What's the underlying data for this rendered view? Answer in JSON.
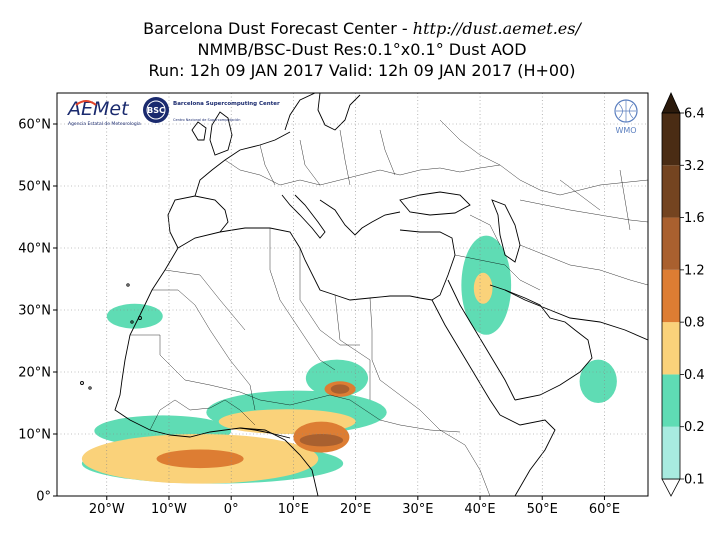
{
  "title": {
    "line1_prefix": "Barcelona Dust Forecast Center - ",
    "line1_url": "http://dust.aemet.es/",
    "line2": "NMMB/BSC-Dust   Res:0.1°x0.1°   Dust AOD",
    "line3": "Run: 12h 09 JAN 2017   Valid: 12h 09 JAN 2017 (H+00)"
  },
  "map": {
    "lon_range": [
      -28,
      67
    ],
    "lat_range": [
      0,
      65
    ],
    "lon_ticks": [
      -20,
      -10,
      0,
      10,
      20,
      30,
      40,
      50,
      60
    ],
    "lon_tick_labels": [
      "20°W",
      "10°W",
      "0°",
      "10°E",
      "20°E",
      "30°E",
      "40°E",
      "50°E",
      "60°E"
    ],
    "lat_ticks": [
      0,
      10,
      20,
      30,
      40,
      50,
      60
    ],
    "lat_tick_labels": [
      "0°",
      "10°N",
      "20°N",
      "30°N",
      "40°N",
      "50°N",
      "60°N"
    ],
    "grid": true,
    "grid_style": "dotted"
  },
  "colorbar": {
    "levels": [
      "0.1",
      "0.2",
      "0.4",
      "0.8",
      "1.2",
      "1.6",
      "3.2",
      "6.4"
    ],
    "colors": [
      "#a8ebe0",
      "#5fdcb4",
      "#fad27a",
      "#dd7d33",
      "#a9602f",
      "#744420",
      "#4a2c14"
    ],
    "extend": "both",
    "under_color": "#ffffff",
    "over_color": "#2b1a0c"
  },
  "logos": {
    "aemet_text": "AEMet",
    "aemet_sub": "Agencia Estatal de Meteorología",
    "bsc_mark": "BSC",
    "bsc_name": "Barcelona Supercomputing Center",
    "bsc_sub": "Centro Nacional de Supercomputación",
    "wmo_text": "WMO"
  },
  "dust_blobs": [
    {
      "level": 1,
      "lon": [
        -24,
        18
      ],
      "lat": [
        2,
        8.5
      ]
    },
    {
      "level": 1,
      "lon": [
        -22,
        0
      ],
      "lat": [
        8,
        13
      ]
    },
    {
      "level": 1,
      "lon": [
        -4,
        25
      ],
      "lat": [
        10,
        17
      ]
    },
    {
      "level": 1,
      "lon": [
        12,
        22
      ],
      "lat": [
        16,
        22
      ]
    },
    {
      "level": 1,
      "lon": [
        -20,
        -11
      ],
      "lat": [
        27,
        31
      ]
    },
    {
      "level": 1,
      "lon": [
        37,
        45
      ],
      "lat": [
        26,
        42
      ]
    },
    {
      "level": 1,
      "lon": [
        56,
        62
      ],
      "lat": [
        15,
        22
      ]
    },
    {
      "level": 2,
      "lon": [
        -24,
        14
      ],
      "lat": [
        2,
        10
      ]
    },
    {
      "level": 2,
      "lon": [
        -2,
        20
      ],
      "lat": [
        10,
        14
      ]
    },
    {
      "level": 2,
      "lon": [
        39,
        42
      ],
      "lat": [
        31,
        36
      ]
    },
    {
      "level": 3,
      "lon": [
        -12,
        2
      ],
      "lat": [
        4.5,
        7.5
      ]
    },
    {
      "level": 3,
      "lon": [
        10,
        19
      ],
      "lat": [
        7,
        12
      ]
    },
    {
      "level": 3,
      "lon": [
        15,
        20
      ],
      "lat": [
        16,
        18.5
      ]
    },
    {
      "level": 4,
      "lon": [
        11,
        18
      ],
      "lat": [
        8,
        10
      ]
    },
    {
      "level": 4,
      "lon": [
        16,
        19
      ],
      "lat": [
        16.5,
        18
      ]
    }
  ]
}
